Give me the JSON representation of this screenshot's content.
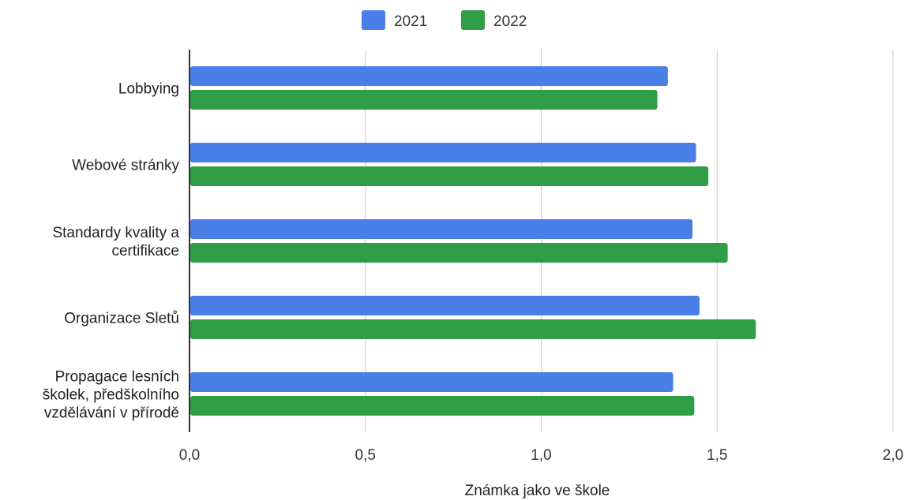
{
  "chart_data": {
    "type": "bar",
    "orientation": "horizontal",
    "categories": [
      [
        "Lobbying"
      ],
      [
        "Webové stránky"
      ],
      [
        "Standardy kvality a",
        "certifikace"
      ],
      [
        "Organizace Sletů"
      ],
      [
        "Propagace lesních",
        "školek, předškolního",
        "vzdělávání v přírodě"
      ]
    ],
    "series": [
      {
        "name": "2021",
        "color": "#4a7fe8",
        "values": [
          1.36,
          1.44,
          1.43,
          1.45,
          1.375
        ]
      },
      {
        "name": "2022",
        "color": "#2f9e46",
        "values": [
          1.33,
          1.475,
          1.53,
          1.61,
          1.435
        ]
      }
    ],
    "xlim": [
      0,
      2
    ],
    "xticks": [
      "0,0",
      "0,5",
      "1,0",
      "1,5",
      "2,0"
    ],
    "xtick_values": [
      0,
      0.5,
      1,
      1.5,
      2
    ],
    "xlabel": "Známka jako ve škole",
    "grid": true,
    "legend_position": "top"
  }
}
